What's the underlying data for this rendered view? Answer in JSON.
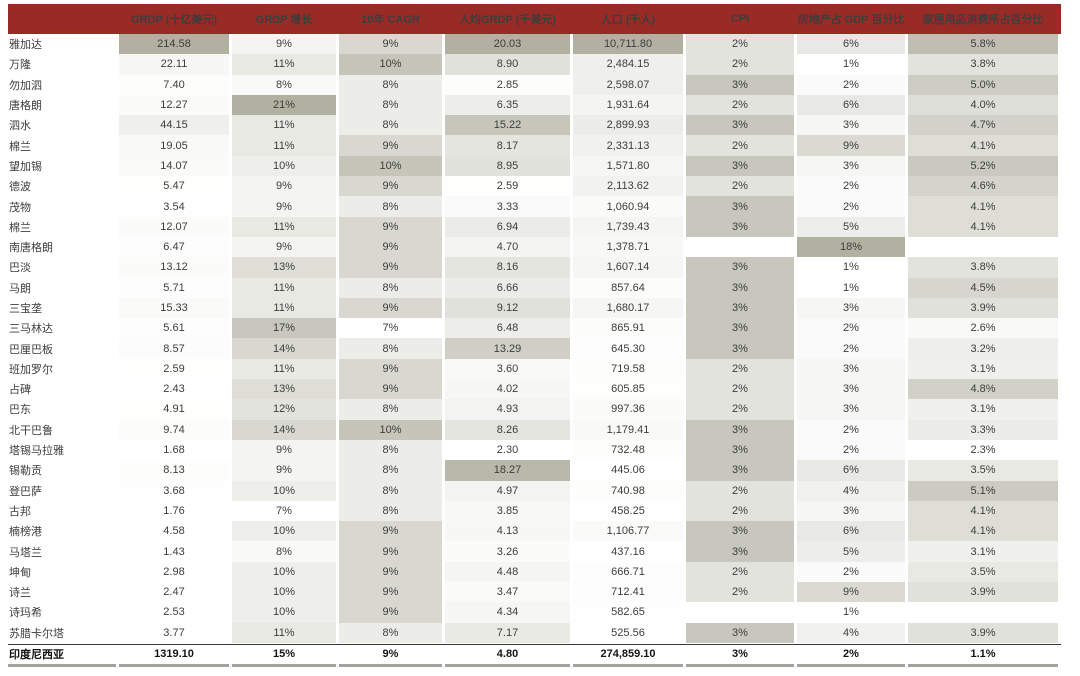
{
  "chart_data": {
    "type": "table",
    "title": "",
    "columns": [
      {
        "key": "city",
        "label": ""
      },
      {
        "key": "grdp",
        "label": "GRDP (十亿美元)"
      },
      {
        "key": "grdp_growth",
        "label": "GRDP 增长"
      },
      {
        "key": "cagr_10y",
        "label": "10年 CAGR"
      },
      {
        "key": "grdp_per_capita",
        "label": "人均GRDP (千美元)"
      },
      {
        "key": "population",
        "label": "人口 (千人)"
      },
      {
        "key": "cpi",
        "label": "CPI"
      },
      {
        "key": "real_estate_pct_gdp",
        "label": "房地产占 GDP 百分比"
      },
      {
        "key": "household_goods_pct",
        "label": "家居用品消费所占百分比"
      }
    ],
    "rows": [
      [
        "雅加达",
        "214.58",
        "9%",
        "9%",
        "20.03",
        "10,711.80",
        "2%",
        "6%",
        "5.8%"
      ],
      [
        "万隆",
        "22.11",
        "11%",
        "10%",
        "8.90",
        "2,484.15",
        "2%",
        "1%",
        "3.8%"
      ],
      [
        "勿加泗",
        "7.40",
        "8%",
        "8%",
        "2.85",
        "2,598.07",
        "3%",
        "2%",
        "5.0%"
      ],
      [
        "唐格朗",
        "12.27",
        "21%",
        "8%",
        "6.35",
        "1,931.64",
        "2%",
        "6%",
        "4.0%"
      ],
      [
        "泗水",
        "44.15",
        "11%",
        "8%",
        "15.22",
        "2,899.93",
        "3%",
        "3%",
        "4.7%"
      ],
      [
        "棉兰",
        "19.05",
        "11%",
        "9%",
        "8.17",
        "2,331.13",
        "2%",
        "9%",
        "4.1%"
      ],
      [
        "望加锡",
        "14.07",
        "10%",
        "10%",
        "8.95",
        "1,571.80",
        "3%",
        "3%",
        "5.2%"
      ],
      [
        "德波",
        "5.47",
        "9%",
        "9%",
        "2.59",
        "2,113.62",
        "2%",
        "2%",
        "4.6%"
      ],
      [
        "茂物",
        "3.54",
        "9%",
        "8%",
        "3.33",
        "1,060.94",
        "3%",
        "2%",
        "4.1%"
      ],
      [
        "棉兰",
        "12.07",
        "11%",
        "9%",
        "6.94",
        "1,739.43",
        "3%",
        "5%",
        "4.1%"
      ],
      [
        "南唐格朗",
        "6.47",
        "9%",
        "9%",
        "4.70",
        "1,378.71",
        "",
        "18%",
        ""
      ],
      [
        "巴淡",
        "13.12",
        "13%",
        "9%",
        "8.16",
        "1,607.14",
        "3%",
        "1%",
        "3.8%"
      ],
      [
        "马朗",
        "5.71",
        "11%",
        "8%",
        "6.66",
        "857.64",
        "3%",
        "1%",
        "4.5%"
      ],
      [
        "三宝垄",
        "15.33",
        "11%",
        "9%",
        "9.12",
        "1,680.17",
        "3%",
        "3%",
        "3.9%"
      ],
      [
        "三马林达",
        "5.61",
        "17%",
        "7%",
        "6.48",
        "865.91",
        "3%",
        "2%",
        "2.6%"
      ],
      [
        "巴厘巴板",
        "8.57",
        "14%",
        "8%",
        "13.29",
        "645.30",
        "3%",
        "2%",
        "3.2%"
      ],
      [
        "班加罗尔",
        "2.59",
        "11%",
        "9%",
        "3.60",
        "719.58",
        "2%",
        "3%",
        "3.1%"
      ],
      [
        "占碑",
        "2.43",
        "13%",
        "9%",
        "4.02",
        "605.85",
        "2%",
        "3%",
        "4.8%"
      ],
      [
        "巴东",
        "4.91",
        "12%",
        "8%",
        "4.93",
        "997.36",
        "2%",
        "3%",
        "3.1%"
      ],
      [
        "北干巴鲁",
        "9.74",
        "14%",
        "10%",
        "8.26",
        "1,179.41",
        "3%",
        "2%",
        "3.3%"
      ],
      [
        "塔锡马拉雅",
        "1.68",
        "9%",
        "8%",
        "2.30",
        "732.48",
        "3%",
        "2%",
        "2.3%"
      ],
      [
        "锡勒贡",
        "8.13",
        "9%",
        "8%",
        "18.27",
        "445.06",
        "3%",
        "6%",
        "3.5%"
      ],
      [
        "登巴萨",
        "3.68",
        "10%",
        "8%",
        "4.97",
        "740.98",
        "2%",
        "4%",
        "5.1%"
      ],
      [
        "古邦",
        "1.76",
        "7%",
        "8%",
        "3.85",
        "458.25",
        "2%",
        "3%",
        "4.1%"
      ],
      [
        "楠榜港",
        "4.58",
        "10%",
        "9%",
        "4.13",
        "1,106.77",
        "3%",
        "6%",
        "4.1%"
      ],
      [
        "马塔兰",
        "1.43",
        "8%",
        "9%",
        "3.26",
        "437.16",
        "3%",
        "5%",
        "3.1%"
      ],
      [
        "坤甸",
        "2.98",
        "10%",
        "9%",
        "4.48",
        "666.71",
        "2%",
        "2%",
        "3.5%"
      ],
      [
        "诗兰",
        "2.47",
        "10%",
        "9%",
        "3.47",
        "712.41",
        "2%",
        "9%",
        "3.9%"
      ],
      [
        "诗玛希",
        "2.53",
        "10%",
        "9%",
        "4.34",
        "582.65",
        "",
        "1%",
        ""
      ],
      [
        "苏腊卡尔塔",
        "3.77",
        "11%",
        "8%",
        "7.17",
        "525.56",
        "3%",
        "4%",
        "3.9%"
      ]
    ],
    "total_row": [
      "印度尼西亚",
      "1319.10",
      "15%",
      "9%",
      "4.80",
      "274,859.10",
      "3%",
      "2%",
      "1.1%"
    ],
    "layout_hints": {
      "heatmap": "per-column scale, darker grey-green = higher value; total row unshaded",
      "legend": "none",
      "grid": "off"
    }
  },
  "colors": {
    "header_bg": "#992B27",
    "header_text": "#FFFFFF",
    "shade_low": "#FFFFFF",
    "shade_high": "#B1B1A2",
    "body_text": "#3D3D3D",
    "total_text": "#141414",
    "total_top_border": "#3A3A3A",
    "total_bottom_border": "#A3A39D"
  }
}
